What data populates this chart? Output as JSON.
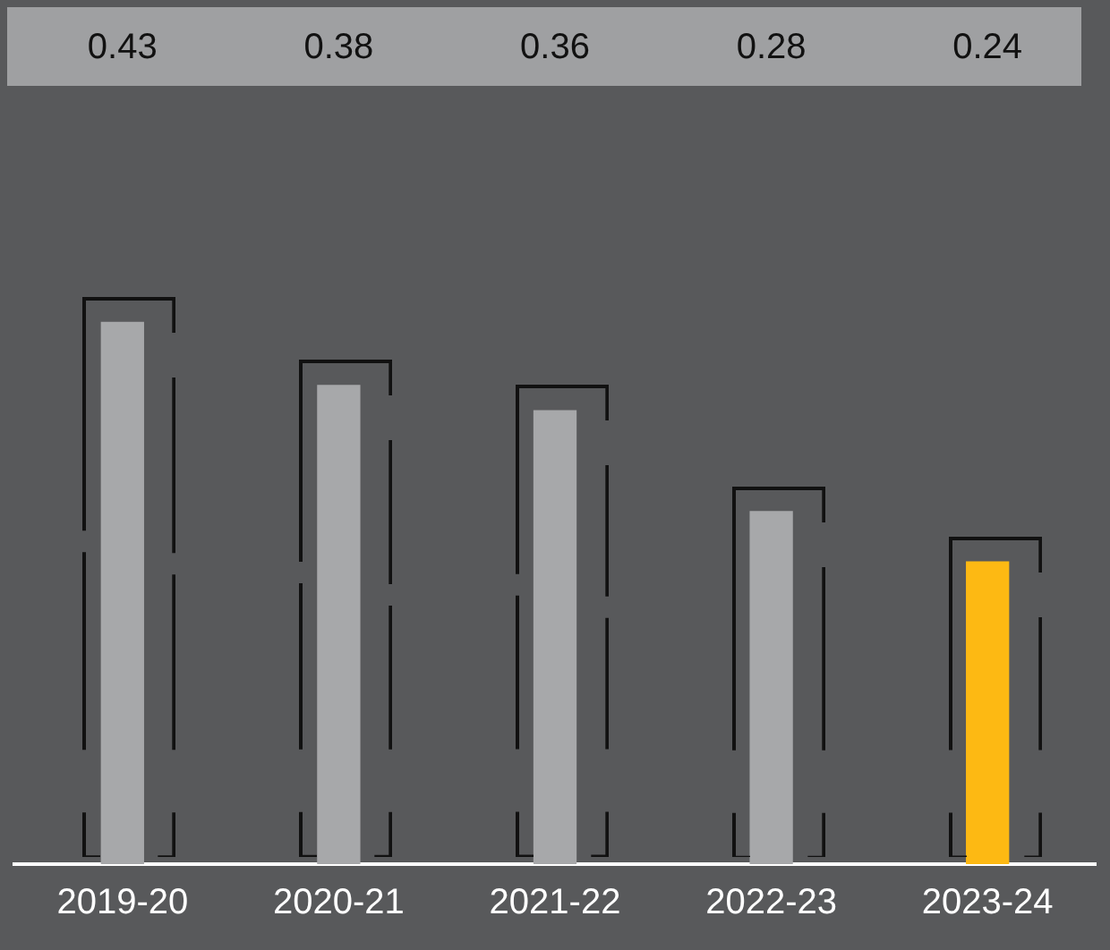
{
  "chart_data": {
    "type": "bar",
    "categories": [
      "2019-20",
      "2020-21",
      "2021-22",
      "2022-23",
      "2023-24"
    ],
    "values": [
      0.43,
      0.38,
      0.36,
      0.28,
      0.24
    ],
    "colors": [
      "#a7a8aa",
      "#a7a8aa",
      "#a7a8aa",
      "#a7a8aa",
      "#fdb913"
    ],
    "tick_labels": "x",
    "grid": false,
    "legend": false,
    "data_labels": true
  }
}
